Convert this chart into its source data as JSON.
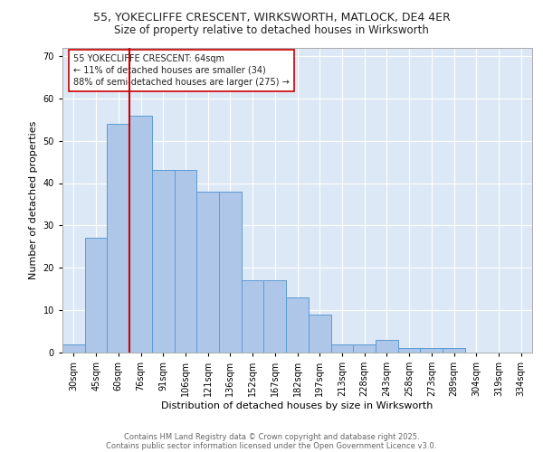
{
  "title_line1": "55, YOKECLIFFE CRESCENT, WIRKSWORTH, MATLOCK, DE4 4ER",
  "title_line2": "Size of property relative to detached houses in Wirksworth",
  "xlabel": "Distribution of detached houses by size in Wirksworth",
  "ylabel": "Number of detached properties",
  "bins": [
    "30sqm",
    "45sqm",
    "60sqm",
    "76sqm",
    "91sqm",
    "106sqm",
    "121sqm",
    "136sqm",
    "152sqm",
    "167sqm",
    "182sqm",
    "197sqm",
    "213sqm",
    "228sqm",
    "243sqm",
    "258sqm",
    "273sqm",
    "289sqm",
    "304sqm",
    "319sqm",
    "334sqm"
  ],
  "values": [
    2,
    27,
    54,
    56,
    43,
    43,
    38,
    38,
    17,
    17,
    13,
    9,
    2,
    2,
    3,
    1,
    1,
    1,
    0,
    0,
    0
  ],
  "bar_color": "#aec6e8",
  "bar_edge_color": "#5b9bd5",
  "red_line_x": 2.5,
  "red_line_color": "#cc0000",
  "annotation_text": "55 YOKECLIFFE CRESCENT: 64sqm\n← 11% of detached houses are smaller (34)\n88% of semi-detached houses are larger (275) →",
  "annotation_box_color": "#ffffff",
  "annotation_box_edge_color": "#cc0000",
  "ylim": [
    0,
    72
  ],
  "yticks": [
    0,
    10,
    20,
    30,
    40,
    50,
    60,
    70
  ],
  "background_color": "#dce8f5",
  "footer_line1": "Contains HM Land Registry data © Crown copyright and database right 2025.",
  "footer_line2": "Contains public sector information licensed under the Open Government Licence v3.0.",
  "title_fontsize": 9,
  "subtitle_fontsize": 8.5,
  "axis_label_fontsize": 8,
  "tick_fontsize": 7,
  "annotation_fontsize": 7,
  "footer_fontsize": 6
}
